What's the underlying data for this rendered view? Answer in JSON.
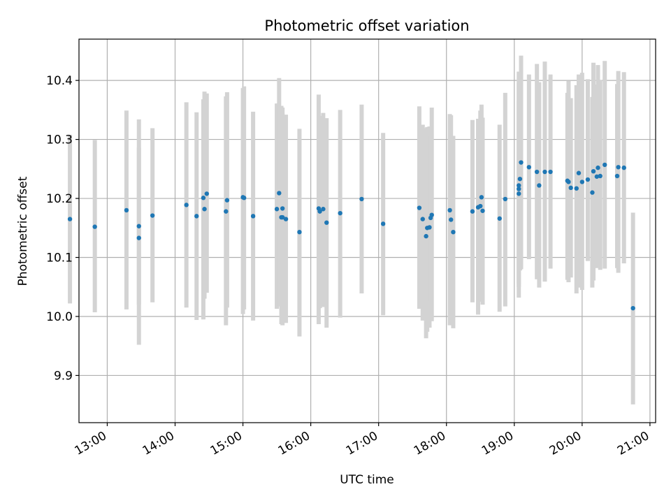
{
  "chart_data": {
    "type": "scatter",
    "title": "Photometric offset variation",
    "xlabel": "UTC time",
    "ylabel": "Photometric offset",
    "x_unit": "UTC hours (HH:MM)",
    "xlim": [
      "12:35",
      "21:05"
    ],
    "ylim": [
      9.82,
      10.47
    ],
    "x_ticks": [
      "13:00",
      "14:00",
      "15:00",
      "16:00",
      "17:00",
      "18:00",
      "19:00",
      "20:00",
      "21:00"
    ],
    "y_ticks": [
      "9.9",
      "10.0",
      "10.1",
      "10.2",
      "10.3",
      "10.4"
    ],
    "grid": true,
    "legend": "none",
    "colors": {
      "points": "#1f77b4",
      "error_bars": "#d3d3d3",
      "grid": "#b0b0b0",
      "axes": "#000000"
    },
    "series": [
      {
        "x": [
          "12:27",
          "12:49",
          "13:17",
          "13:28",
          "13:28",
          "13:40",
          "14:10",
          "14:19",
          "14:25",
          "14:26",
          "14:28",
          "14:45",
          "14:46",
          "15:00",
          "15:01",
          "15:09",
          "15:30",
          "15:32",
          "15:34",
          "15:35",
          "15:35",
          "15:38",
          "15:50",
          "16:07",
          "16:08",
          "16:11",
          "16:14",
          "16:26",
          "16:45",
          "17:04",
          "17:36",
          "17:39",
          "17:42",
          "17:43",
          "17:45",
          "17:46",
          "17:47",
          "18:03",
          "18:04",
          "18:06",
          "18:23",
          "18:28",
          "18:30",
          "18:31",
          "18:32",
          "18:47",
          "18:52",
          "19:04",
          "19:04",
          "19:04",
          "19:05",
          "19:06",
          "19:13",
          "19:20",
          "19:22",
          "19:27",
          "19:32",
          "19:47",
          "19:48",
          "19:50",
          "19:55",
          "19:57",
          "20:00",
          "20:05",
          "20:09",
          "20:10",
          "20:13",
          "20:14",
          "20:16",
          "20:20",
          "20:31",
          "20:32",
          "20:37",
          "20:45"
        ],
        "y": [
          10.165,
          10.152,
          10.18,
          10.153,
          10.133,
          10.171,
          10.189,
          10.17,
          10.201,
          10.182,
          10.208,
          10.178,
          10.197,
          10.202,
          10.201,
          10.17,
          10.182,
          10.209,
          10.168,
          10.183,
          10.168,
          10.165,
          10.143,
          10.183,
          10.178,
          10.182,
          10.159,
          10.175,
          10.199,
          10.157,
          10.184,
          10.165,
          10.136,
          10.15,
          10.151,
          10.167,
          10.172,
          10.18,
          10.164,
          10.143,
          10.178,
          10.185,
          10.187,
          10.202,
          10.179,
          10.166,
          10.199,
          10.208,
          10.216,
          10.222,
          10.233,
          10.261,
          10.253,
          10.245,
          10.222,
          10.245,
          10.245,
          10.23,
          10.228,
          10.218,
          10.217,
          10.243,
          10.228,
          10.232,
          10.21,
          10.246,
          10.237,
          10.252,
          10.238,
          10.257,
          10.238,
          10.253,
          10.252,
          10.014
        ],
        "yerr_low": [
          10.022,
          10.007,
          10.012,
          10.02,
          9.952,
          10.024,
          10.015,
          9.994,
          9.995,
          10.03,
          10.04,
          9.985,
          10.015,
          10.004,
          10.012,
          9.993,
          10.013,
          10.017,
          9.987,
          9.985,
          10.033,
          9.989,
          9.966,
          9.987,
          10.014,
          10.016,
          9.981,
          9.998,
          10.039,
          10.002,
          10.013,
          9.993,
          9.963,
          9.974,
          9.981,
          10.026,
          9.992,
          9.985,
          9.99,
          9.98,
          10.024,
          10.003,
          10.026,
          10.025,
          10.02,
          10.008,
          10.017,
          10.05,
          10.055,
          10.032,
          10.078,
          10.08,
          10.097,
          10.063,
          10.049,
          10.059,
          10.081,
          10.062,
          10.058,
          10.066,
          10.039,
          10.049,
          10.045,
          10.094,
          10.049,
          10.061,
          10.082,
          10.084,
          10.079,
          10.081,
          10.082,
          10.074,
          10.09,
          9.851
        ],
        "yerr_high": [
          10.308,
          10.299,
          10.349,
          10.286,
          10.334,
          10.319,
          10.363,
          10.346,
          10.368,
          10.381,
          10.378,
          10.373,
          10.38,
          10.387,
          10.39,
          10.347,
          10.361,
          10.404,
          10.357,
          10.354,
          10.344,
          10.342,
          10.318,
          10.376,
          10.34,
          10.345,
          10.336,
          10.35,
          10.359,
          10.311,
          10.356,
          10.325,
          10.319,
          10.321,
          10.322,
          10.307,
          10.354,
          10.343,
          10.341,
          10.306,
          10.333,
          10.335,
          10.349,
          10.359,
          10.337,
          10.325,
          10.379,
          10.366,
          10.396,
          10.415,
          10.389,
          10.442,
          10.41,
          10.428,
          10.397,
          10.432,
          10.41,
          10.379,
          10.399,
          10.37,
          10.392,
          10.41,
          10.413,
          10.402,
          10.372,
          10.43,
          10.393,
          10.426,
          10.401,
          10.433,
          10.394,
          10.416,
          10.414,
          10.176
        ]
      }
    ]
  }
}
